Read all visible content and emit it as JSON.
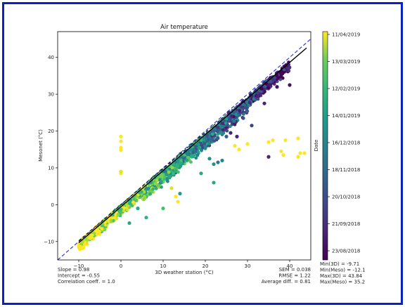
{
  "colors": {
    "frame": "#0b22c2",
    "identity_line": "#2233cc",
    "fit_line": "#000000",
    "colormap": "viridis"
  },
  "chart_data": {
    "type": "scatter",
    "title": "Air temperature",
    "xlabel": "3D weather station (°C)",
    "ylabel": "Mesonet (°C)",
    "xlim": [
      -15,
      45
    ],
    "ylim": [
      -15,
      47
    ],
    "xticks": [
      -10,
      0,
      10,
      20,
      30,
      40
    ],
    "yticks": [
      -10,
      0,
      10,
      20,
      30,
      40
    ],
    "grid": false,
    "lines": [
      {
        "kind": "identity",
        "style": "dashed",
        "x": [
          -15,
          45
        ],
        "y": [
          -15,
          45
        ]
      },
      {
        "kind": "fit",
        "style": "solid",
        "slope": 0.98,
        "intercept": -0.55,
        "x": [
          -10,
          44
        ]
      }
    ],
    "colorbar": {
      "label": "Date",
      "ticks": [
        "11/04/2019",
        "13/03/2019",
        "12/02/2019",
        "14/01/2019",
        "16/12/2018",
        "18/11/2018",
        "20/10/2018",
        "21/09/2018",
        "23/08/2018"
      ]
    },
    "stats_left": [
      "Slope = 0.98",
      "Intercept = -0.55",
      "Correlation coeff. = 1.0"
    ],
    "stats_center": [
      "SEM = 0.038",
      "RMSE = 1.22",
      "Average diff. = 0.81"
    ],
    "stats_right": [
      "Min(3D) = -9.71",
      "Min(Meso) = -12.1",
      "Max(3D) = 43.84",
      "Max(Meso) = 35.2"
    ],
    "outliers": [
      {
        "x": 0,
        "y": 18.5,
        "c": 1.0
      },
      {
        "x": 0,
        "y": 17.2,
        "c": 1.0
      },
      {
        "x": 0,
        "y": 15.5,
        "c": 1.0
      },
      {
        "x": 0,
        "y": 14.8,
        "c": 1.0
      },
      {
        "x": 0,
        "y": 8.5,
        "c": 1.0
      },
      {
        "x": 0,
        "y": 9.0,
        "c": 0.95
      },
      {
        "x": 27,
        "y": 16.0,
        "c": 1.0
      },
      {
        "x": 28,
        "y": 15.0,
        "c": 1.0
      },
      {
        "x": 30,
        "y": 16.5,
        "c": 1.0
      },
      {
        "x": 35,
        "y": 17.0,
        "c": 1.0
      },
      {
        "x": 36,
        "y": 17.5,
        "c": 1.0
      },
      {
        "x": 39,
        "y": 17.5,
        "c": 1.0
      },
      {
        "x": 42,
        "y": 18.0,
        "c": 1.0
      },
      {
        "x": 38,
        "y": 14.5,
        "c": 1.0
      },
      {
        "x": 38.5,
        "y": 13.5,
        "c": 1.0
      },
      {
        "x": 42.5,
        "y": 14.0,
        "c": 1.0
      },
      {
        "x": 43.5,
        "y": 14.0,
        "c": 1.0
      },
      {
        "x": 42,
        "y": 13.0,
        "c": 1.0
      },
      {
        "x": 35,
        "y": 13.0,
        "c": 0.1
      },
      {
        "x": 26,
        "y": 19.5,
        "c": 0.1
      },
      {
        "x": 27.5,
        "y": 18.5,
        "c": 0.1
      },
      {
        "x": 13,
        "y": 2.2,
        "c": 1.0
      },
      {
        "x": 13.5,
        "y": 0.8,
        "c": 1.0
      },
      {
        "x": 12,
        "y": 4.5,
        "c": 0.95
      },
      {
        "x": 22,
        "y": 11.0,
        "c": 0.5
      },
      {
        "x": 23,
        "y": 11.5,
        "c": 0.4
      },
      {
        "x": 24,
        "y": 12.0,
        "c": 0.45
      },
      {
        "x": 21,
        "y": 12.5,
        "c": 0.5
      },
      {
        "x": 19,
        "y": 8.5,
        "c": 0.6
      },
      {
        "x": 22,
        "y": 6.0,
        "c": 0.6
      },
      {
        "x": 31,
        "y": 29.5,
        "c": 0.1
      },
      {
        "x": 34,
        "y": 27.5,
        "c": 0.1
      },
      {
        "x": 37,
        "y": 32.0,
        "c": 0.05
      },
      {
        "x": 40,
        "y": 32.5,
        "c": 0.05
      },
      {
        "x": 33,
        "y": 30.0,
        "c": 0.1
      },
      {
        "x": 29,
        "y": 23.5,
        "c": 0.25
      },
      {
        "x": 31,
        "y": 21.5,
        "c": 0.2
      },
      {
        "x": 25,
        "y": 18.5,
        "c": 0.3
      },
      {
        "x": 23,
        "y": 21.0,
        "c": 0.15
      },
      {
        "x": 25.5,
        "y": 25.0,
        "c": 0.1
      },
      {
        "x": 4,
        "y": -1.0,
        "c": 0.6
      },
      {
        "x": 2,
        "y": -5.0,
        "c": 0.6
      },
      {
        "x": 6,
        "y": -3.5,
        "c": 0.65
      },
      {
        "x": 10,
        "y": -1.0,
        "c": 0.7
      },
      {
        "x": 14,
        "y": 3.0,
        "c": 0.55
      }
    ]
  }
}
